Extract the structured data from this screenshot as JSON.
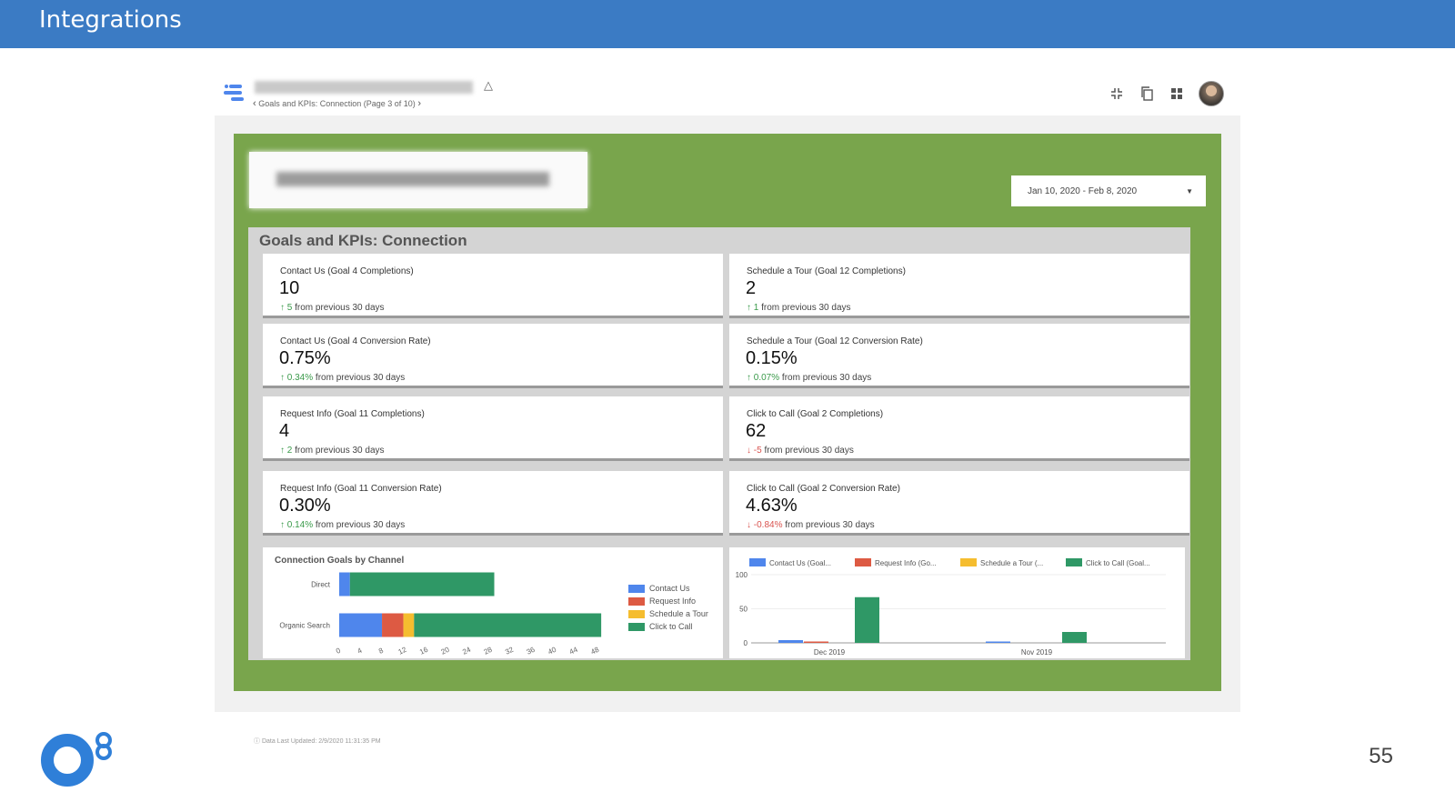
{
  "slide": {
    "title": "Integrations",
    "page_number": "55"
  },
  "toolbar": {
    "breadcrumb": "Goals and KPIs: Connection (Page 3 of 10)",
    "prev_arrow": "‹",
    "next_arrow": "›"
  },
  "report": {
    "date_range": "Jan 10, 2020 - Feb 8, 2020",
    "section_title": "Goals and KPIs: Connection",
    "footer": "Data Last Updated: 2/9/2020 11:31:35 PM"
  },
  "kpis": [
    {
      "label": "Contact Us (Goal 4 Completions)",
      "value": "10",
      "arrow": "↑",
      "delta": "5",
      "direction": "up",
      "suffix": "from previous 30 days"
    },
    {
      "label": "Schedule a Tour (Goal 12 Completions)",
      "value": "2",
      "arrow": "↑",
      "delta": "1",
      "direction": "up",
      "suffix": "from previous 30 days"
    },
    {
      "label": "Contact Us (Goal 4 Conversion Rate)",
      "value": "0.75%",
      "arrow": "↑",
      "delta": "0.34%",
      "direction": "up",
      "suffix": "from previous 30 days"
    },
    {
      "label": "Schedule a Tour (Goal 12 Conversion Rate)",
      "value": "0.15%",
      "arrow": "↑",
      "delta": "0.07%",
      "direction": "up",
      "suffix": "from previous 30 days"
    },
    {
      "label": "Request Info (Goal 11 Completions)",
      "value": "4",
      "arrow": "↑",
      "delta": "2",
      "direction": "up",
      "suffix": "from previous 30 days"
    },
    {
      "label": "Click to Call (Goal 2 Completions)",
      "value": "62",
      "arrow": "↓",
      "delta": "-5",
      "direction": "down",
      "suffix": "from previous 30 days"
    },
    {
      "label": "Request Info (Goal 11 Conversion Rate)",
      "value": "0.30%",
      "arrow": "↑",
      "delta": "0.14%",
      "direction": "up",
      "suffix": "from previous 30 days"
    },
    {
      "label": "Click to Call (Goal 2 Conversion Rate)",
      "value": "4.63%",
      "arrow": "↓",
      "delta": "-0.84%",
      "direction": "down",
      "suffix": "from previous 30 days"
    }
  ],
  "colors": {
    "contact": "#4f86ec",
    "request": "#dd5a43",
    "tour": "#f5bd2f",
    "call": "#2f9866"
  },
  "chart_data": [
    {
      "type": "bar",
      "orientation": "horizontal",
      "stacked": true,
      "title": "Connection Goals by Channel",
      "categories": [
        "Direct",
        "Organic Search"
      ],
      "series": [
        {
          "name": "Contact Us",
          "values": [
            2,
            8
          ]
        },
        {
          "name": "Request Info",
          "values": [
            0,
            4
          ]
        },
        {
          "name": "Schedule a Tour",
          "values": [
            0,
            2
          ]
        },
        {
          "name": "Click to Call",
          "values": [
            27,
            35
          ]
        }
      ],
      "xticks": [
        "0",
        "4",
        "8",
        "12",
        "16",
        "20",
        "24",
        "28",
        "32",
        "36",
        "40",
        "44",
        "48"
      ],
      "xlim": [
        0,
        50
      ],
      "legend_position": "right"
    },
    {
      "type": "bar",
      "title": "",
      "legend_labels": [
        "Contact Us (Goal...",
        "Request Info (Go...",
        "Schedule a Tour (...",
        "Click to Call (Goal..."
      ],
      "categories": [
        "Dec 2019",
        "Nov 2019"
      ],
      "series": [
        {
          "name": "Contact Us (Goal...",
          "values": [
            4,
            2
          ]
        },
        {
          "name": "Request Info (Go...",
          "values": [
            2,
            0
          ]
        },
        {
          "name": "Schedule a Tour (...",
          "values": [
            0,
            0
          ]
        },
        {
          "name": "Click to Call (Goal...",
          "values": [
            67,
            16
          ]
        }
      ],
      "yticks": [
        "100",
        "50",
        "0"
      ],
      "ylim": [
        0,
        100
      ],
      "legend_position": "top"
    }
  ]
}
